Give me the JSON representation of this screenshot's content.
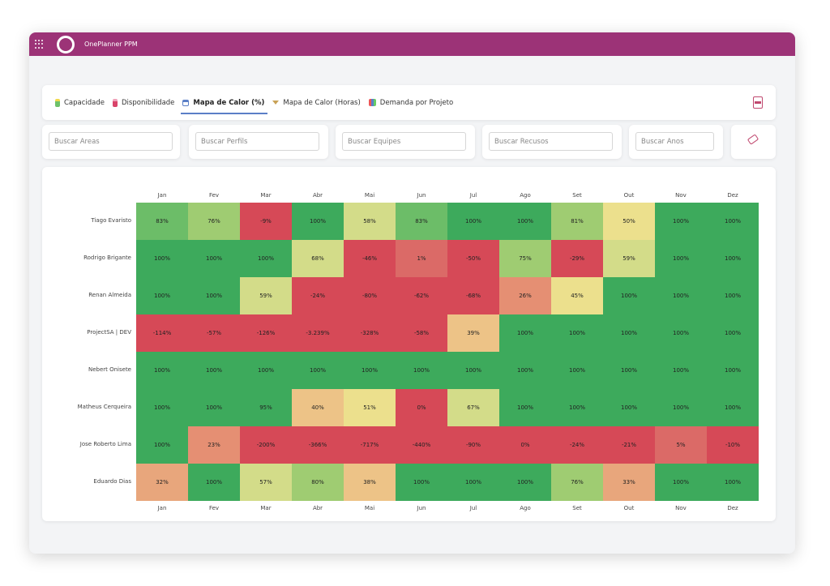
{
  "app": {
    "title": "OnePlanner PPM"
  },
  "tabs": [
    {
      "label": "Capacidade",
      "icon": "battery-full-icon",
      "active": false
    },
    {
      "label": "Disponibilidade",
      "icon": "battery-low-icon",
      "active": false
    },
    {
      "label": "Mapa de Calor (%)",
      "icon": "calendar-icon",
      "active": true
    },
    {
      "label": "Mapa de Calor (Horas)",
      "icon": "hourglass-icon",
      "active": false
    },
    {
      "label": "Demanda por Projeto",
      "icon": "bar-chart-icon",
      "active": false
    }
  ],
  "filters": {
    "areas": "Buscar Áreas",
    "perfis": "Buscar Perfils",
    "equipes": "Buscar Equipes",
    "recursos": "Buscar Recusos",
    "anos": "Buscar Anos"
  },
  "chart_data": {
    "type": "heatmap",
    "months": [
      "Jan",
      "Fev",
      "Mar",
      "Abr",
      "Mai",
      "Jun",
      "Jul",
      "Ago",
      "Set",
      "Out",
      "Nov",
      "Dez"
    ],
    "rows": [
      {
        "name": "Tiago Evaristo",
        "labels": [
          "83%",
          "76%",
          "-9%",
          "100%",
          "58%",
          "83%",
          "100%",
          "100%",
          "81%",
          "50%",
          "100%",
          "100%"
        ],
        "values": [
          83,
          76,
          -9,
          100,
          58,
          83,
          100,
          100,
          81,
          50,
          100,
          100
        ]
      },
      {
        "name": "Rodrigo Brigante",
        "labels": [
          "100%",
          "100%",
          "100%",
          "68%",
          "-46%",
          "1%",
          "-50%",
          "75%",
          "-29%",
          "59%",
          "100%",
          "100%"
        ],
        "values": [
          100,
          100,
          100,
          68,
          -46,
          1,
          -50,
          75,
          -29,
          59,
          100,
          100
        ]
      },
      {
        "name": "Renan Almeida",
        "labels": [
          "100%",
          "100%",
          "59%",
          "-24%",
          "-80%",
          "-62%",
          "-68%",
          "26%",
          "45%",
          "100%",
          "100%",
          "100%"
        ],
        "values": [
          100,
          100,
          59,
          -24,
          -80,
          -62,
          -68,
          26,
          45,
          100,
          100,
          100
        ]
      },
      {
        "name": "ProjectSA | DEV",
        "labels": [
          "-114%",
          "-57%",
          "-126%",
          "-3.239%",
          "-328%",
          "-58%",
          "39%",
          "100%",
          "100%",
          "100%",
          "100%",
          "100%"
        ],
        "values": [
          -114,
          -57,
          -126,
          -3239,
          -328,
          -58,
          39,
          100,
          100,
          100,
          100,
          100
        ]
      },
      {
        "name": "Nebert Onisete",
        "labels": [
          "100%",
          "100%",
          "100%",
          "100%",
          "100%",
          "100%",
          "100%",
          "100%",
          "100%",
          "100%",
          "100%",
          "100%"
        ],
        "values": [
          100,
          100,
          100,
          100,
          100,
          100,
          100,
          100,
          100,
          100,
          100,
          100
        ]
      },
      {
        "name": "Matheus Cerqueira",
        "labels": [
          "100%",
          "100%",
          "95%",
          "40%",
          "51%",
          "0%",
          "67%",
          "100%",
          "100%",
          "100%",
          "100%",
          "100%"
        ],
        "values": [
          100,
          100,
          95,
          40,
          51,
          0,
          67,
          100,
          100,
          100,
          100,
          100
        ]
      },
      {
        "name": "Jose Roberto Lima",
        "labels": [
          "100%",
          "23%",
          "-200%",
          "-366%",
          "-717%",
          "-440%",
          "-90%",
          "0%",
          "-24%",
          "-21%",
          "5%",
          "-10%"
        ],
        "values": [
          100,
          23,
          -200,
          -366,
          -717,
          -440,
          -90,
          0,
          -24,
          -21,
          5,
          -10
        ]
      },
      {
        "name": "Eduardo Dias",
        "labels": [
          "32%",
          "100%",
          "57%",
          "80%",
          "38%",
          "100%",
          "100%",
          "100%",
          "76%",
          "33%",
          "100%",
          "100%"
        ],
        "values": [
          32,
          100,
          57,
          80,
          38,
          100,
          100,
          100,
          76,
          33,
          100,
          100
        ]
      }
    ],
    "colors": {
      "full": "#3daa5c",
      "high": "#6cbd68",
      "mid_high": "#9fcc72",
      "mid": "#d3dc89",
      "yellow": "#ece08d",
      "orange_light": "#edc387",
      "orange": "#e8a67c",
      "salmon": "#e58f73",
      "red_light": "#db6a67",
      "red": "#d64957"
    }
  }
}
